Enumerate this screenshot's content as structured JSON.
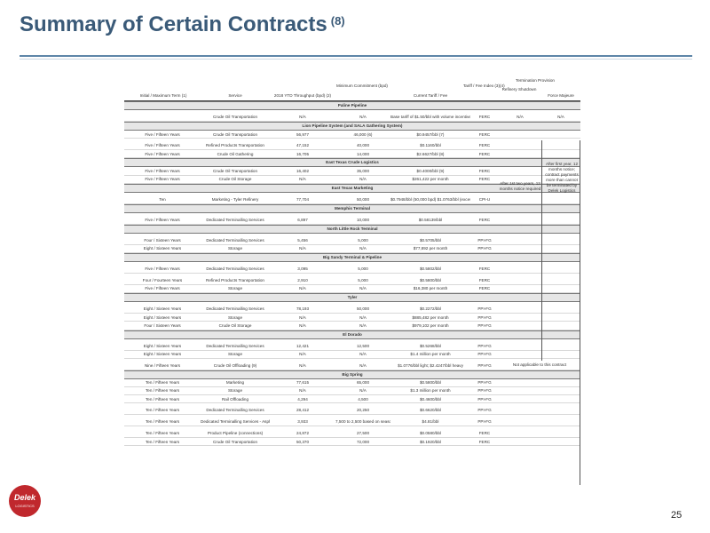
{
  "title": "Summary of Certain Contracts",
  "title_sup": "(8)",
  "page_number": "25",
  "logo": {
    "name": "Delek",
    "sub": "LOGISTICS"
  },
  "table": {
    "headers": {
      "term": "Initial / Maximum Term (1)",
      "service": "Service",
      "throughput": "2018 YTD Throughput (bpd) (2)",
      "min_commit": "Minimum Commitment (bpd)",
      "tariff": "Current Tariff / Fee",
      "tariff_index": "Tariff / Fee Index (3)(4)",
      "termination": "Termination Provision",
      "refinery_shutdown": "Refinery Shutdown",
      "force_majeure": "Force Majeure"
    },
    "sections": [
      {
        "title": "Paline Pipeline",
        "rows": [
          [
            "",
            "Crude Oil Transportation",
            "N/A",
            "N/A",
            "Base tariff of $1.50/bbl with volume incentive rates available (5)",
            "FERC",
            "N/A",
            "N/A"
          ]
        ]
      },
      {
        "title": "Lion Pipeline System (and SALA Gathering System)",
        "rows": [
          [
            "Five / Fifteen Years",
            "Crude Oil Transportation",
            "56,977",
            "46,000 (6)",
            "$0.9457/bbl (7)",
            "FERC",
            "",
            ""
          ],
          [
            "Five / Fifteen Years",
            "Refined Products Transportation",
            "47,152",
            "40,000",
            "$0.1160/bbl",
            "FERC",
            "",
            ""
          ],
          [
            "Five / Fifteen Years",
            "Crude Oil Gathering",
            "16,705",
            "14,000",
            "$2.6627/bbl (8)",
            "FERC",
            "",
            ""
          ]
        ]
      },
      {
        "title": "East Texas Crude Logistics",
        "rows": [
          [
            "Five / Fifteen Years",
            "Crude Oil Transportation",
            "16,402",
            "35,000",
            "$0.4000/bbl (9)",
            "FERC",
            "",
            ""
          ],
          [
            "Five / Fifteen Years",
            "Crude Oil Storage",
            "N/A",
            "N/A",
            "$261,422 per month",
            "FERC",
            "",
            ""
          ]
        ]
      },
      {
        "title": "East Texas Marketing",
        "rows": [
          [
            "Ten",
            "Marketing - Tyler Refinery",
            "77,704",
            "50,000",
            "$0.7948/bbl (50,000 bpd) $1.0763/bbl (excess bpd)",
            "CPI-U",
            "",
            ""
          ]
        ]
      },
      {
        "title": "Memphis Terminal",
        "rows": [
          [
            "Five / Fifteen Years",
            "Dedicated Terminalling Services",
            "6,897",
            "10,000",
            "$0.58139/bbl",
            "FERC",
            "",
            ""
          ]
        ]
      },
      {
        "title": "North Little Rock Terminal",
        "rows": [
          [
            "Four / Sixteen Years",
            "Dedicated Terminalling Services",
            "5,456",
            "5,000",
            "$0.5705/bbl",
            "PPI-FG",
            "",
            ""
          ],
          [
            "Eight / Sixteen Years",
            "Storage",
            "N/A",
            "N/A",
            "$77,892 per month",
            "PPI-FG",
            "",
            ""
          ]
        ]
      },
      {
        "title": "Big Sandy Terminal & Pipeline",
        "rows": [
          [
            "Five / Fifteen Years",
            "Dedicated Terminalling Services",
            "3,095",
            "5,000",
            "$0.5802/bbl",
            "FERC",
            "",
            ""
          ],
          [
            "Four / Fourteen Years",
            "Refined Products Transportation",
            "2,910",
            "5,000",
            "$0.5800/bbl",
            "FERC",
            "",
            ""
          ],
          [
            "Five / Fifteen Years",
            "Storage",
            "N/A",
            "N/A",
            "$16,380 per month",
            "FERC",
            "",
            ""
          ]
        ]
      },
      {
        "title": "Tyler",
        "rows": [
          [
            "Eight / Sixteen Years",
            "Dedicated Terminalling Services",
            "78,193",
            "50,000",
            "$0.2272/bbl",
            "PPI-FG",
            "",
            ""
          ],
          [
            "Eight / Sixteen Years",
            "Storage",
            "N/A",
            "N/A",
            "$885,482 per month",
            "PPI-FG",
            "",
            ""
          ],
          [
            "Four / Sixteen Years",
            "Crude Oil Storage",
            "N/A",
            "N/A",
            "$979,102 per month",
            "PPI-FG",
            "",
            ""
          ]
        ]
      },
      {
        "title": "El Dorado",
        "rows": [
          [
            "Eight / Sixteen Years",
            "Dedicated Terminalling Services",
            "12,421",
            "12,500",
            "$0.5268/bbl",
            "PPI-FG",
            "",
            ""
          ],
          [
            "Eight / Sixteen Years",
            "Storage",
            "N/A",
            "N/A",
            "$1.4 million per month",
            "PPI-FG",
            "",
            ""
          ],
          [
            "Nine / Fifteen Years",
            "Crude Oil Offloading (9)",
            "N/A",
            "N/A",
            "$1.0776/bbl light; $2.4247/bbl heavy",
            "PPI-FG",
            "",
            ""
          ]
        ]
      },
      {
        "title": "Big Spring",
        "rows": [
          [
            "Ten / Fifteen Years",
            "Marketing",
            "77,615",
            "65,000",
            "$0.5800/bbl",
            "PPI-FG",
            "",
            ""
          ],
          [
            "Ten / Fifteen Years",
            "Storage",
            "N/A",
            "N/A",
            "$1.3 million per month",
            "PPI-FG",
            "",
            ""
          ],
          [
            "Ten / Fifteen Years",
            "Rail Offloading",
            "4,294",
            "4,500",
            "$0.4600/bbl",
            "PPI-FG",
            "",
            ""
          ],
          [
            "Ten / Fifteen Years",
            "Dedicated Terminalling Services",
            "28,412",
            "20,250",
            "$0.6620/bbl",
            "PPI-FG",
            "",
            ""
          ],
          [
            "Ten / Fifteen Years",
            "Dedicated Terminalling Services - Asphalt",
            "3,933",
            "7,500 to 2,500 based on seasonality",
            "$4.81/bbl",
            "PPI-FG",
            "",
            ""
          ],
          [
            "Ten / Fifteen Years",
            "Product Pipeline (connections)",
            "24,872",
            "27,500",
            "$0.0580/bbl",
            "FERC",
            "",
            ""
          ],
          [
            "Ten / Fifteen Years",
            "Crude Oil Transportation",
            "50,370",
            "72,000",
            "$0.1920/bbl",
            "FERC",
            "",
            ""
          ]
        ]
      }
    ],
    "termination_note_refinery": "After 1st two years, 12 months notice required",
    "termination_note_force": "After first year, 12 months notice; contract payments more than cannot be terminated by Delek Logistics",
    "termination_note_na": "Not applicable to this contract",
    "paline_shutdown": "N/A",
    "paline_force": "N/A"
  }
}
